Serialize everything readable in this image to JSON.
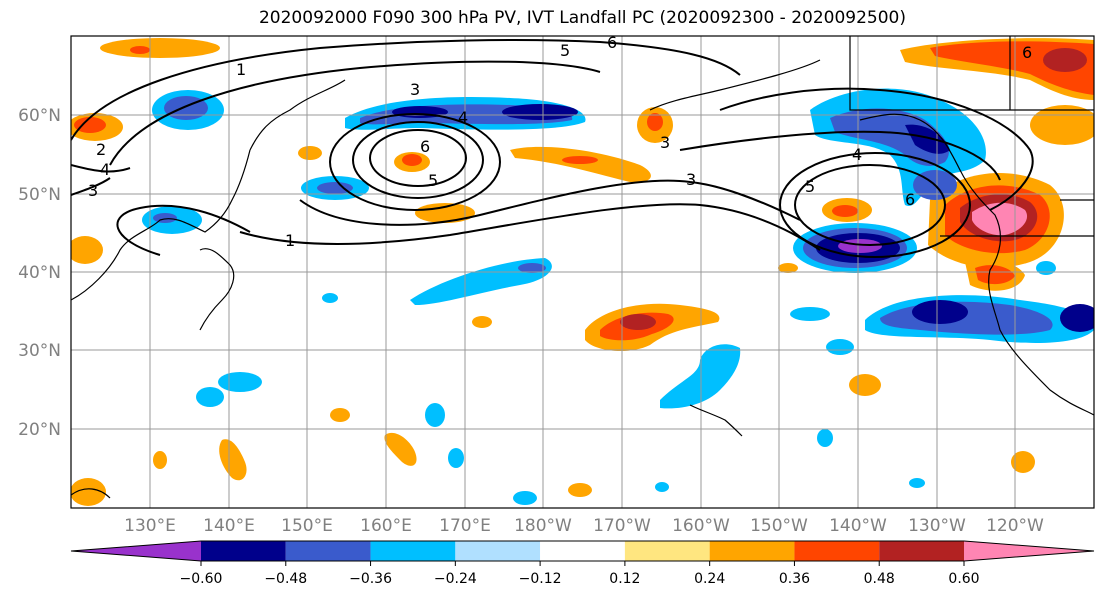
{
  "title": "2020092000 F090 300 hPa PV, IVT Landfall PC (2020092300 - 2020092500)",
  "lat_labels": [
    "60°N",
    "50°N",
    "40°N",
    "30°N",
    "20°N"
  ],
  "lon_labels": [
    "130°E",
    "140°E",
    "150°E",
    "160°E",
    "170°E",
    "180°W",
    "170°W",
    "160°W",
    "150°W",
    "140°W",
    "130°W",
    "120°W"
  ],
  "contour_labels": [
    "1",
    "1",
    "2",
    "3",
    "3",
    "3",
    "3",
    "4",
    "4",
    "4",
    "5",
    "5",
    "5",
    "6",
    "6",
    "6",
    "6"
  ],
  "colorbar": {
    "colors": [
      "#9932cc",
      "#00008b",
      "#3a5bcc",
      "#00bfff",
      "#b0e0ff",
      "#ffffff",
      "#ffe680",
      "#ffa500",
      "#ff4500",
      "#b22222",
      "#ff85b3"
    ],
    "tick_labels": [
      "−0.60",
      "−0.48",
      "−0.36",
      "−0.24",
      "−0.12",
      "0.12",
      "0.24",
      "0.36",
      "0.48",
      "0.60"
    ]
  }
}
